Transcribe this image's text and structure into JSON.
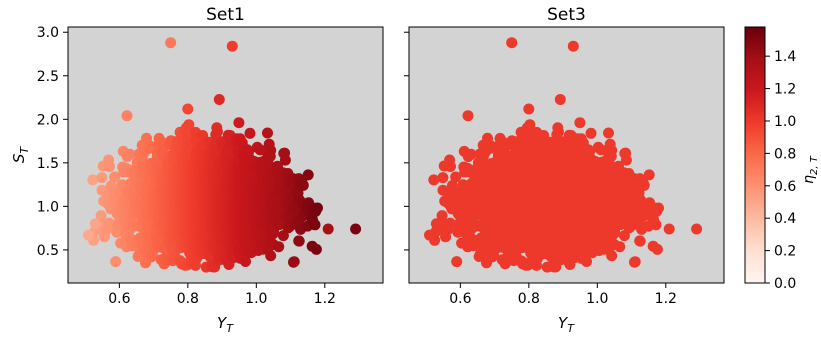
{
  "chart_data": [
    {
      "type": "scatter",
      "title": "Set1",
      "xlabel_main": "Y",
      "xlabel_sub": "T",
      "ylabel_main": "S",
      "ylabel_sub": "T",
      "xlim": [
        0.45,
        1.37
      ],
      "ylim": [
        0.12,
        3.06
      ],
      "xticks": [
        "0.6",
        "0.8",
        "1.0",
        "1.2"
      ],
      "xtick_values": [
        0.6,
        0.8,
        1.0,
        1.2
      ],
      "yticks": [
        "0.5",
        "1.0",
        "1.5",
        "2.0",
        "2.5",
        "3.0"
      ],
      "ytick_values": [
        0.5,
        1.0,
        1.5,
        2.0,
        2.5,
        3.0
      ],
      "background": "#d3d3d3",
      "color_by": "eta_2T",
      "color_mode": "gradient_with_x",
      "outliers": [
        {
          "x": 0.75,
          "y": 2.88,
          "c": 0.72
        },
        {
          "x": 0.93,
          "y": 2.84,
          "c": 0.98
        },
        {
          "x": 1.21,
          "y": 0.74,
          "c": 1.36
        },
        {
          "x": 1.29,
          "y": 0.74,
          "c": 1.52
        },
        {
          "x": 0.51,
          "y": 0.67,
          "c": 0.48
        },
        {
          "x": 0.53,
          "y": 0.8,
          "c": 0.5
        }
      ]
    },
    {
      "type": "scatter",
      "title": "Set3",
      "xlabel_main": "Y",
      "xlabel_sub": "T",
      "xlim": [
        0.45,
        1.37
      ],
      "ylim": [
        0.12,
        3.06
      ],
      "xticks": [
        "0.6",
        "0.8",
        "1.0",
        "1.2"
      ],
      "xtick_values": [
        0.6,
        0.8,
        1.0,
        1.2
      ],
      "background": "#d3d3d3",
      "color_by": "eta_2T",
      "color_mode": "constant",
      "constant_value": 1.0,
      "outliers": [
        {
          "x": 0.75,
          "y": 2.88,
          "c": 1.0
        },
        {
          "x": 0.93,
          "y": 2.84,
          "c": 1.0
        },
        {
          "x": 1.21,
          "y": 0.74,
          "c": 1.0
        },
        {
          "x": 1.29,
          "y": 0.74,
          "c": 1.0
        },
        {
          "x": 0.51,
          "y": 0.67,
          "c": 1.0
        },
        {
          "x": 0.53,
          "y": 0.8,
          "c": 1.0
        }
      ]
    }
  ],
  "colorbar": {
    "label_main": "η",
    "label_sub": "2, T",
    "range": [
      0.0,
      1.58
    ],
    "ticks": [
      "0.0",
      "0.2",
      "0.4",
      "0.6",
      "0.8",
      "1.0",
      "1.2",
      "1.4"
    ],
    "tick_values": [
      0.0,
      0.2,
      0.4,
      0.6,
      0.8,
      1.0,
      1.2,
      1.4
    ],
    "colormap": "Reds",
    "colormap_stops": [
      "#fff5f0",
      "#fee0d2",
      "#fcbba1",
      "#fc9272",
      "#fb6a4a",
      "#ef3b2c",
      "#cb181d",
      "#a50f15",
      "#67000d"
    ]
  }
}
